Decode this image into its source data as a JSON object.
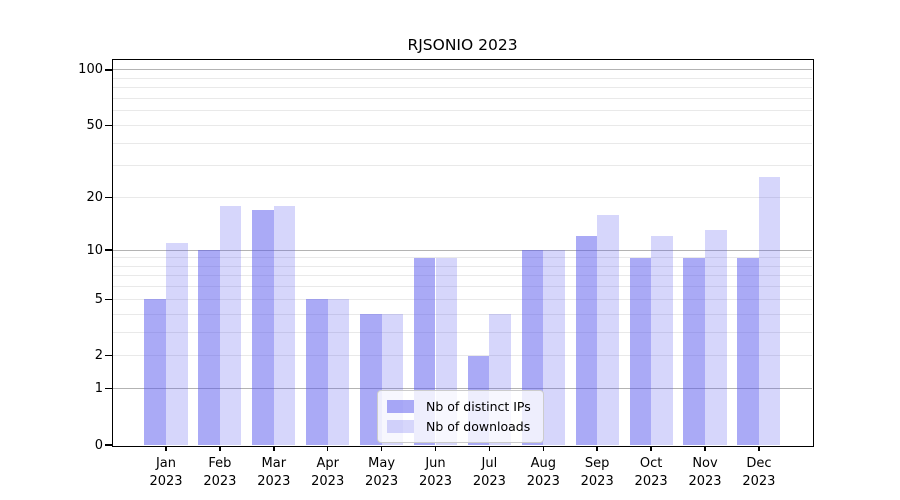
{
  "title": "RJSONIO 2023",
  "chart_data": {
    "type": "bar",
    "title": "RJSONIO 2023",
    "scale": "log1p",
    "grid": "on",
    "legend_position": "lower center",
    "categories": [
      "Jan",
      "Feb",
      "Mar",
      "Apr",
      "May",
      "Jun",
      "Jul",
      "Aug",
      "Sep",
      "Oct",
      "Nov",
      "Dec"
    ],
    "year_label": "2023",
    "series": [
      {
        "name": "Nb of distinct IPs",
        "color": "#5555ee",
        "alpha": 0.5,
        "values": [
          5,
          10,
          17,
          5,
          4,
          9,
          2,
          10,
          12,
          9,
          9,
          9
        ]
      },
      {
        "name": "Nb of downloads",
        "color": "#5555ee",
        "alpha": 0.24,
        "values": [
          11,
          18,
          18,
          5,
          4,
          9,
          4,
          10,
          16,
          12,
          13,
          26
        ]
      }
    ],
    "xlabel": "",
    "ylabel": "",
    "ylim": [
      0,
      113
    ],
    "y_ticks": [
      100,
      50,
      20,
      10,
      5,
      2,
      1,
      0
    ],
    "major_gridlines": [
      100,
      10,
      1
    ],
    "minor_gridlines": [
      90,
      80,
      70,
      60,
      50,
      40,
      30,
      20,
      9,
      8,
      7,
      6,
      5,
      4,
      3,
      2
    ]
  },
  "colors": {
    "ips_fill": "#aaaaf6",
    "downloads_fill": "#d6d6fa",
    "major_grid": "#b3b3b3",
    "minor_grid": "#e9e9e9",
    "axis": "#000000",
    "legend_border": "#cccccc"
  }
}
